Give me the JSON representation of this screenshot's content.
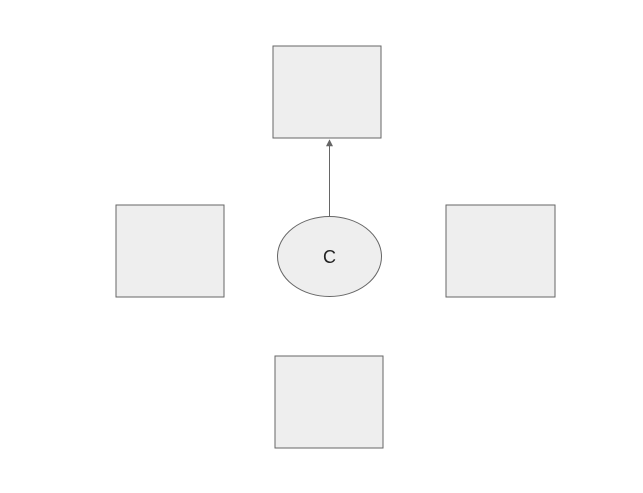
{
  "diagram": {
    "center_node": {
      "label": "C"
    },
    "colors": {
      "node_fill": "#eeeeee",
      "node_stroke": "#666666",
      "edge_stroke": "#666666",
      "text": "#222222",
      "background": "#ffffff"
    },
    "nodes": [
      {
        "id": "top-box",
        "label": ""
      },
      {
        "id": "left-box",
        "label": ""
      },
      {
        "id": "right-box",
        "label": ""
      },
      {
        "id": "bottom-box",
        "label": ""
      }
    ],
    "edges": [
      {
        "from": "center",
        "to": "top-box",
        "directed": true
      }
    ]
  }
}
